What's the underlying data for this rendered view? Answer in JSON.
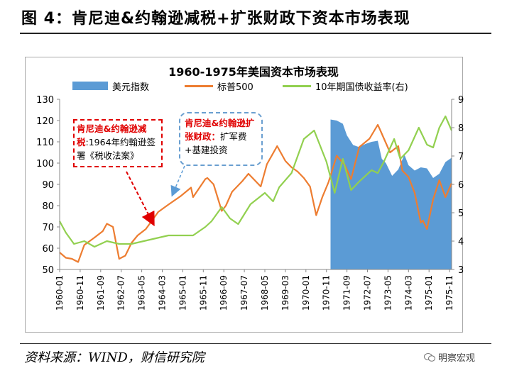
{
  "figure": {
    "title": "图 4：肯尼迪&约翰逊减税+扩张财政下资本市场表现",
    "source": "资料来源：WIND，财信研究院",
    "watermark": "明察宏观"
  },
  "annotations": {
    "tax_cut": {
      "heading": "肯尼迪&约翰逊减税",
      "body": ":1964年约翰逊签署《税收法案》"
    },
    "fiscal": {
      "heading": "肯尼迪&约翰逊扩张财政：",
      "body": "扩军费+基建投资"
    }
  },
  "colors": {
    "dollar_index": "#5b9bd5",
    "sp500": "#ed7d31",
    "treasury_10y": "#92d050",
    "annotation_red": "#e00000",
    "annotation_blue": "#6a9fd0"
  },
  "chart_data": {
    "type": "line",
    "title": "1960-1975年美国资本市场表现",
    "legend_position": "top",
    "grid": false,
    "x_tick_labels": [
      "1960-01",
      "1960-11",
      "1961-09",
      "1962-07",
      "1963-05",
      "1964-03",
      "1965-01",
      "1965-11",
      "1966-09",
      "1967-07",
      "1968-05",
      "1969-03",
      "1970-01",
      "1970-11",
      "1971-09",
      "1972-07",
      "1973-05",
      "1974-03",
      "1975-01",
      "1975-11"
    ],
    "x_range": [
      "1960-01",
      "1975-12"
    ],
    "y_left": {
      "ticks": [
        "50",
        "60",
        "70",
        "80",
        "90",
        "100",
        "110",
        "120",
        "130"
      ],
      "range": [
        50,
        130
      ]
    },
    "y_right": {
      "ticks": [
        "3",
        "4",
        "5",
        "6",
        "7",
        "8",
        "9"
      ],
      "range": [
        3,
        9
      ]
    },
    "series": [
      {
        "name": "美元指数",
        "kind": "area",
        "axis": "left",
        "start": "1971-01",
        "points": [
          [
            "1971-01",
            120.5
          ],
          [
            "1971-04",
            120.0
          ],
          [
            "1971-07",
            118.5
          ],
          [
            "1971-09",
            113.0
          ],
          [
            "1971-12",
            108.5
          ],
          [
            "1972-03",
            107.5
          ],
          [
            "1972-06",
            109.0
          ],
          [
            "1972-09",
            110.0
          ],
          [
            "1972-12",
            110.5
          ],
          [
            "1973-02",
            102.0
          ],
          [
            "1973-04",
            100.0
          ],
          [
            "1973-07",
            94.0
          ],
          [
            "1973-10",
            97.0
          ],
          [
            "1974-01",
            104.0
          ],
          [
            "1974-03",
            99.0
          ],
          [
            "1974-06",
            96.5
          ],
          [
            "1974-09",
            98.0
          ],
          [
            "1974-12",
            97.5
          ],
          [
            "1975-03",
            93.0
          ],
          [
            "1975-06",
            95.0
          ],
          [
            "1975-09",
            100.5
          ],
          [
            "1975-12",
            102.5
          ]
        ]
      },
      {
        "name": "标普500",
        "kind": "line",
        "axis": "left",
        "points": [
          [
            "1960-01",
            58.0
          ],
          [
            "1960-04",
            55.5
          ],
          [
            "1960-07",
            55.0
          ],
          [
            "1960-10",
            53.5
          ],
          [
            "1961-01",
            61.5
          ],
          [
            "1961-06",
            65.0
          ],
          [
            "1961-10",
            68.0
          ],
          [
            "1961-12",
            71.5
          ],
          [
            "1962-03",
            70.0
          ],
          [
            "1962-06",
            55.0
          ],
          [
            "1962-09",
            56.5
          ],
          [
            "1962-12",
            62.5
          ],
          [
            "1963-03",
            66.0
          ],
          [
            "1963-07",
            69.0
          ],
          [
            "1963-10",
            73.0
          ],
          [
            "1964-01",
            77.0
          ],
          [
            "1964-06",
            80.5
          ],
          [
            "1964-12",
            84.5
          ],
          [
            "1965-05",
            88.5
          ],
          [
            "1965-06",
            84.0
          ],
          [
            "1965-12",
            92.5
          ],
          [
            "1966-01",
            93.0
          ],
          [
            "1966-04",
            90.0
          ],
          [
            "1966-08",
            77.5
          ],
          [
            "1966-10",
            80.0
          ],
          [
            "1967-01",
            86.5
          ],
          [
            "1967-06",
            91.5
          ],
          [
            "1967-09",
            95.0
          ],
          [
            "1968-03",
            89.0
          ],
          [
            "1968-06",
            99.5
          ],
          [
            "1968-11",
            108.0
          ],
          [
            "1969-03",
            101.0
          ],
          [
            "1969-06",
            98.0
          ],
          [
            "1969-09",
            96.0
          ],
          [
            "1969-12",
            93.0
          ],
          [
            "1970-03",
            89.0
          ],
          [
            "1970-06",
            75.5
          ],
          [
            "1970-09",
            84.0
          ],
          [
            "1970-12",
            91.0
          ],
          [
            "1971-04",
            103.5
          ],
          [
            "1971-08",
            99.0
          ],
          [
            "1971-11",
            92.5
          ],
          [
            "1972-03",
            107.5
          ],
          [
            "1972-08",
            111.5
          ],
          [
            "1972-12",
            118.0
          ],
          [
            "1973-01",
            116.0
          ],
          [
            "1973-06",
            105.0
          ],
          [
            "1973-10",
            108.0
          ],
          [
            "1973-12",
            96.5
          ],
          [
            "1974-03",
            93.5
          ],
          [
            "1974-06",
            86.0
          ],
          [
            "1974-09",
            72.0
          ],
          [
            "1974-10",
            73.0
          ],
          [
            "1974-12",
            69.0
          ],
          [
            "1975-03",
            83.0
          ],
          [
            "1975-06",
            92.0
          ],
          [
            "1975-09",
            84.0
          ],
          [
            "1975-12",
            90.5
          ]
        ]
      },
      {
        "name": "10年期国债收益率(右)",
        "kind": "line",
        "axis": "right",
        "points": [
          [
            "1960-01",
            4.7
          ],
          [
            "1960-04",
            4.3
          ],
          [
            "1960-08",
            3.9
          ],
          [
            "1961-01",
            4.0
          ],
          [
            "1961-06",
            3.8
          ],
          [
            "1961-12",
            4.0
          ],
          [
            "1962-06",
            3.9
          ],
          [
            "1962-12",
            3.9
          ],
          [
            "1963-06",
            4.0
          ],
          [
            "1963-12",
            4.1
          ],
          [
            "1964-06",
            4.2
          ],
          [
            "1964-12",
            4.2
          ],
          [
            "1965-06",
            4.2
          ],
          [
            "1965-12",
            4.5
          ],
          [
            "1966-03",
            4.7
          ],
          [
            "1966-08",
            5.2
          ],
          [
            "1966-12",
            4.8
          ],
          [
            "1967-04",
            4.6
          ],
          [
            "1967-10",
            5.3
          ],
          [
            "1968-05",
            5.7
          ],
          [
            "1968-09",
            5.4
          ],
          [
            "1968-12",
            5.9
          ],
          [
            "1969-06",
            6.4
          ],
          [
            "1969-12",
            7.6
          ],
          [
            "1970-05",
            7.9
          ],
          [
            "1970-11",
            6.8
          ],
          [
            "1971-03",
            5.7
          ],
          [
            "1971-07",
            6.9
          ],
          [
            "1971-11",
            5.8
          ],
          [
            "1972-03",
            6.1
          ],
          [
            "1972-09",
            6.5
          ],
          [
            "1972-12",
            6.4
          ],
          [
            "1973-03",
            6.8
          ],
          [
            "1973-08",
            7.6
          ],
          [
            "1973-11",
            6.9
          ],
          [
            "1974-03",
            7.2
          ],
          [
            "1974-08",
            8.0
          ],
          [
            "1974-12",
            7.4
          ],
          [
            "1975-03",
            7.3
          ],
          [
            "1975-06",
            8.0
          ],
          [
            "1975-09",
            8.4
          ],
          [
            "1975-12",
            7.9
          ]
        ]
      }
    ]
  }
}
